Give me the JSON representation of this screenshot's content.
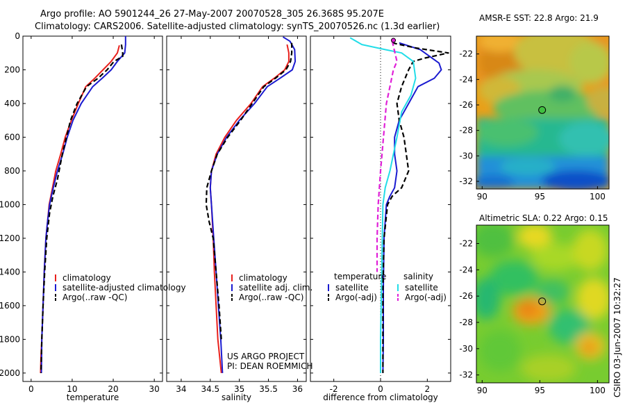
{
  "header": {
    "line1": "Argo profile: AO 5901244_26 27-May-2007 20070528_305 26.368S 95.207E",
    "line2": "Climatology: CARS2006. Satellite-adjusted climatology: synTS_20070526.nc (1.3d earlier)"
  },
  "side_label": "CSIRO 03-Jun-2007 10:32:27",
  "project": {
    "line1": "US ARGO PROJECT",
    "line2": "PI: DEAN ROEMMICH"
  },
  "colors": {
    "climatology": "#e8201c",
    "satellite": "#1a1ad0",
    "argo": "#000000",
    "sat_salinity": "#22dde8",
    "argo_salinity": "#e020d8"
  },
  "chart_data": [
    {
      "type": "line",
      "xlabel": "temperature",
      "xlim": [
        -2,
        32
      ],
      "ylim": [
        2050,
        0
      ],
      "xticks": [
        0,
        10,
        20,
        30
      ],
      "yticks": [
        0,
        200,
        400,
        600,
        800,
        1000,
        1200,
        1400,
        1600,
        1800,
        2000
      ],
      "legend": [
        "climatology",
        "satellite-adjusted climatology",
        "Argo(..raw -QC)"
      ],
      "series": [
        {
          "name": "climatology",
          "color": "#e8201c",
          "dash": false,
          "x": [
            21.5,
            21.0,
            19.5,
            17.5,
            15.5,
            13.3,
            11.5,
            9.8,
            8.3,
            7.2,
            6.0,
            5.2,
            4.4,
            4.0,
            3.6,
            3.2,
            2.9,
            2.6,
            2.4,
            2.3
          ],
          "y": [
            55,
            100,
            150,
            200,
            250,
            300,
            400,
            500,
            600,
            700,
            800,
            900,
            1000,
            1100,
            1200,
            1400,
            1600,
            1800,
            1900,
            2000
          ]
        },
        {
          "name": "satellite-adjusted climatology",
          "color": "#1a1ad0",
          "dash": false,
          "x": [
            23.0,
            23.0,
            22.8,
            21.0,
            19.5,
            17.3,
            15.0,
            12.2,
            10.2,
            8.8,
            7.7,
            6.4,
            5.4,
            4.5,
            4.0,
            3.6,
            3.2,
            2.9,
            2.6,
            2.5
          ],
          "y": [
            0,
            50,
            100,
            150,
            200,
            250,
            300,
            400,
            500,
            600,
            700,
            800,
            900,
            1000,
            1100,
            1200,
            1400,
            1600,
            1800,
            2000
          ]
        },
        {
          "name": "Argo(..raw -QC)",
          "color": "#000000",
          "dash": true,
          "x": [
            22.0,
            22.3,
            22.3,
            20.2,
            18.5,
            16.3,
            13.5,
            11.2,
            9.6,
            8.6,
            7.6,
            6.4,
            5.3,
            4.5,
            3.8,
            3.3,
            2.9,
            2.6,
            2.4
          ],
          "y": [
            50,
            100,
            120,
            150,
            200,
            250,
            300,
            400,
            500,
            600,
            700,
            850,
            950,
            1050,
            1200,
            1400,
            1600,
            1800,
            2000
          ]
        }
      ]
    },
    {
      "type": "line",
      "xlabel": "salinity",
      "xlim": [
        33.75,
        36.15
      ],
      "ylim": [
        2050,
        0
      ],
      "xticks": [
        34,
        34.5,
        35,
        35.5,
        36
      ],
      "legend": [
        "climatology",
        "satellite adj. clim.",
        "Argo(..raw -QC)"
      ],
      "series": [
        {
          "name": "climatology",
          "color": "#e8201c",
          "dash": false,
          "x": [
            35.82,
            35.85,
            35.85,
            35.78,
            35.6,
            35.4,
            35.2,
            34.95,
            34.75,
            34.6,
            34.52,
            34.5,
            34.52,
            34.55,
            34.57,
            34.6,
            34.63,
            34.66,
            34.69
          ],
          "y": [
            50,
            100,
            150,
            200,
            250,
            300,
            400,
            500,
            600,
            700,
            800,
            900,
            1000,
            1200,
            1400,
            1600,
            1800,
            1900,
            2000
          ]
        },
        {
          "name": "satellite adj. clim.",
          "color": "#1a1ad0",
          "dash": false,
          "x": [
            35.75,
            35.87,
            35.95,
            35.96,
            35.91,
            35.7,
            35.48,
            35.26,
            35.0,
            34.78,
            34.62,
            34.52,
            34.5,
            34.52,
            34.56,
            34.6,
            34.64,
            34.68,
            34.71
          ],
          "y": [
            5,
            30,
            80,
            150,
            200,
            250,
            300,
            400,
            500,
            600,
            700,
            800,
            900,
            1000,
            1200,
            1400,
            1600,
            1800,
            2000
          ]
        },
        {
          "name": "Argo(..raw -QC)",
          "color": "#000000",
          "dash": true,
          "x": [
            35.9,
            35.9,
            35.88,
            35.8,
            35.62,
            35.42,
            35.22,
            35.02,
            34.8,
            34.62,
            34.52,
            34.44,
            34.43,
            34.48,
            34.55,
            34.6,
            34.65,
            34.69
          ],
          "y": [
            40,
            100,
            150,
            200,
            250,
            300,
            400,
            500,
            600,
            700,
            800,
            900,
            1000,
            1100,
            1200,
            1400,
            1600,
            1800
          ]
        }
      ]
    },
    {
      "type": "line",
      "xlabel": "difference from climatology",
      "xlim": [
        -3,
        3
      ],
      "ylim": [
        2050,
        0
      ],
      "xticks": [
        -2,
        0,
        2
      ],
      "legend_temperature_title": "temperature",
      "legend_salinity_title": "salinity",
      "legend": [
        "satellite",
        "Argo(-adj)",
        "satellite",
        "Argo(-adj)"
      ],
      "series": [
        {
          "name": "satellite",
          "color": "#1a1ad0",
          "dash": false,
          "group": "temperature",
          "x": [
            0.8,
            1.7,
            2.5,
            2.6,
            2.3,
            1.6,
            1.2,
            0.8,
            0.6,
            0.6,
            0.7,
            0.6,
            0.4,
            0.25,
            0.15,
            0.12,
            0.12,
            0.1
          ],
          "y": [
            40,
            80,
            160,
            200,
            250,
            300,
            400,
            500,
            600,
            700,
            800,
            900,
            950,
            1000,
            1200,
            1500,
            1800,
            2000
          ]
        },
        {
          "name": "Argo(-adj)",
          "color": "#000000",
          "dash": true,
          "group": "temperature",
          "x": [
            0.5,
            1.5,
            2.9,
            1.9,
            1.4,
            1.2,
            0.9,
            0.7,
            0.8,
            1.0,
            1.2,
            0.9,
            0.5,
            0.3,
            0.15,
            0.1,
            0.1
          ],
          "y": [
            40,
            70,
            100,
            130,
            150,
            200,
            300,
            400,
            500,
            600,
            800,
            900,
            950,
            1000,
            1200,
            1500,
            2000
          ]
        },
        {
          "name": "satellite",
          "color": "#22dde8",
          "dash": false,
          "group": "salinity",
          "x": [
            -1.3,
            -0.8,
            0.2,
            0.9,
            1.4,
            1.5,
            1.3,
            0.9,
            0.7,
            0.4,
            0.2,
            0.1,
            0.05,
            0.0,
            0.0
          ],
          "y": [
            10,
            50,
            80,
            100,
            150,
            250,
            350,
            450,
            600,
            800,
            900,
            1000,
            1400,
            1800,
            2000
          ]
        },
        {
          "name": "Argo(-adj)",
          "color": "#e020d8",
          "dash": true,
          "group": "salinity",
          "x": [
            0.5,
            0.7,
            0.55,
            0.4,
            0.25,
            0.0,
            -0.1,
            -0.15,
            -0.15
          ],
          "y": [
            30,
            150,
            200,
            300,
            400,
            800,
            1000,
            1200,
            1400
          ]
        }
      ]
    },
    {
      "type": "heatmap",
      "title": "AMSR-E SST: 22.8 Argo: 21.9",
      "xticks": [
        90,
        95,
        100
      ],
      "yticks": [
        -22,
        -24,
        -26,
        -28,
        -30,
        -32
      ],
      "xlim": [
        89.5,
        101
      ],
      "ylim": [
        -32.6,
        -20.6
      ],
      "marker": {
        "lon": 95.2,
        "lat": -26.4
      }
    },
    {
      "type": "heatmap",
      "title": "Altimetric SLA: 0.22 Argo: 0.15",
      "xticks": [
        90,
        95,
        100
      ],
      "yticks": [
        -22,
        -24,
        -26,
        -28,
        -30,
        -32
      ],
      "xlim": [
        89.5,
        101
      ],
      "ylim": [
        -32.6,
        -20.6
      ],
      "marker": {
        "lon": 95.2,
        "lat": -26.4
      }
    }
  ]
}
